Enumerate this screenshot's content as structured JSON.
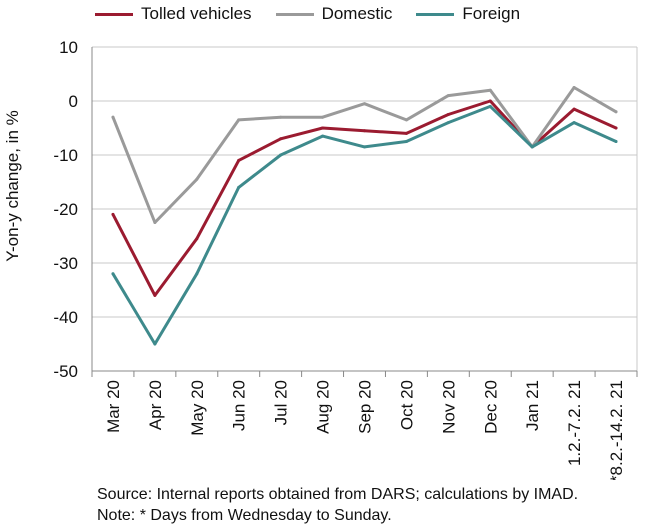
{
  "chart_data": {
    "type": "line",
    "ylabel": "Y-on-y change, in %",
    "ylim": [
      -50,
      10
    ],
    "yticks": [
      10,
      0,
      -10,
      -20,
      -30,
      -40,
      -50
    ],
    "grid": true,
    "legend_position": "top",
    "categories": [
      "Mar 20",
      "Apr 20",
      "May 20",
      "Jun 20",
      "Jul 20",
      "Aug 20",
      "Sep 20",
      "Oct 20",
      "Nov 20",
      "Dec 20",
      "Jan 21",
      "1.2.-7.2. 21",
      "*8.2.-14.2. 21"
    ],
    "series": [
      {
        "name": "Tolled vehicles",
        "color": "#9b1b30",
        "values": [
          -21,
          -36,
          -25.5,
          -11,
          -7,
          -5,
          -5.5,
          -6,
          -2.5,
          0,
          -8.5,
          -1.5,
          -5
        ]
      },
      {
        "name": "Domestic",
        "color": "#9a9a9a",
        "values": [
          -3,
          -22.5,
          -14.5,
          -3.5,
          -3,
          -3,
          -0.5,
          -3.5,
          1,
          2,
          -8.5,
          2.5,
          -2
        ]
      },
      {
        "name": "Foreign",
        "color": "#3e8a8c",
        "values": [
          -32,
          -45,
          -32,
          -16,
          -10,
          -6.5,
          -8.5,
          -7.5,
          -4,
          -1,
          -8.5,
          -4,
          -7.5
        ]
      }
    ]
  },
  "source_text": "Source: Internal reports obtained from DARS; calculations by IMAD. Note: * Days from Wednesday to Sunday."
}
